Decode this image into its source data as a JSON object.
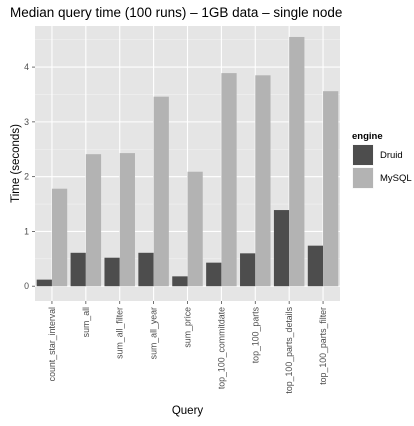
{
  "chart_data": {
    "type": "bar",
    "title": "Median query time (100 runs) – 1GB data – single node",
    "xlabel": "Query",
    "ylabel": "Time (seconds)",
    "ylim": [
      -0.27,
      4.75
    ],
    "yticks": [
      0,
      1,
      2,
      3,
      4
    ],
    "grid": true,
    "legend_placement": "right",
    "legend_title": "engine",
    "categories": [
      "count_star_interval",
      "sum_all",
      "sum_all_filter",
      "sum_all_year",
      "sum_price",
      "top_100_commitdate",
      "top_100_parts",
      "top_100_parts_details",
      "top_100_parts_filter"
    ],
    "series": [
      {
        "name": "Druid",
        "color": "#4d4d4d",
        "values": [
          0.12,
          0.61,
          0.52,
          0.61,
          0.18,
          0.43,
          0.6,
          1.39,
          0.74
        ]
      },
      {
        "name": "MySQL",
        "color": "#b3b3b3",
        "values": [
          1.78,
          2.41,
          2.43,
          3.46,
          2.09,
          3.89,
          3.85,
          4.55,
          3.56
        ]
      }
    ],
    "panel_background": "#e5e5e5",
    "grid_color": "#ffffff"
  }
}
